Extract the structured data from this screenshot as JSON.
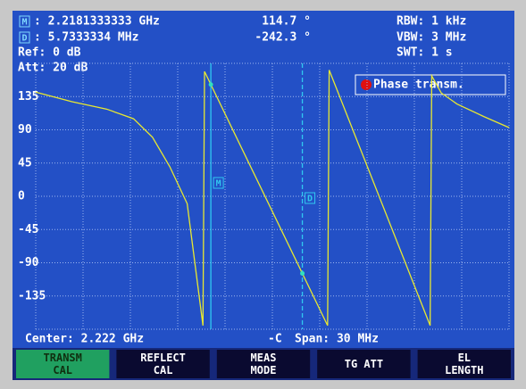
{
  "header": {
    "marker_label": "M",
    "marker_freq": ": 2.2181333333 GHz",
    "marker_value": "114.7 °",
    "rbw": "RBW: 1 kHz",
    "delta_label": "D",
    "delta_freq": ": 5.7333334 MHz",
    "delta_value": "-242.3 °",
    "vbw": "VBW: 3 MHz",
    "ref": "Ref: 0 dB",
    "swt": "SWT: 1 s",
    "att": "Att: 20 dB"
  },
  "chart_data": {
    "type": "line",
    "xlim": [
      2.207,
      2.237
    ],
    "ylim": [
      -180,
      180
    ],
    "yticks": [
      -135,
      -90,
      -45,
      0,
      45,
      90,
      135
    ],
    "grid": true,
    "series": [
      {
        "name": "Phase transm.",
        "color": "#e8e830",
        "x": [
          2.207,
          2.2093,
          2.2115,
          2.2132,
          2.2144,
          2.2155,
          2.2166,
          2.2176,
          2.2177,
          2.2255,
          2.2256,
          2.232,
          2.2321,
          2.2327,
          2.2337,
          2.2354,
          2.237
        ],
        "values": [
          141,
          128,
          118,
          105,
          80,
          40,
          -10,
          -175,
          169,
          -175,
          171,
          -175,
          163,
          140,
          125,
          108,
          93
        ]
      }
    ],
    "markers": [
      {
        "label": "M",
        "x": 2.2181
      },
      {
        "label": "D",
        "x": 2.2239
      }
    ]
  },
  "footer": {
    "center": "Center: 2.222 GHz",
    "span": "Span: 30 MHz"
  },
  "softkeys": [
    [
      "TRANSM",
      "CAL"
    ],
    [
      "REFLECT",
      "CAL"
    ],
    [
      "MEAS",
      "MODE"
    ],
    [
      "TG ATT"
    ],
    [
      "EL",
      "LENGTH"
    ]
  ]
}
